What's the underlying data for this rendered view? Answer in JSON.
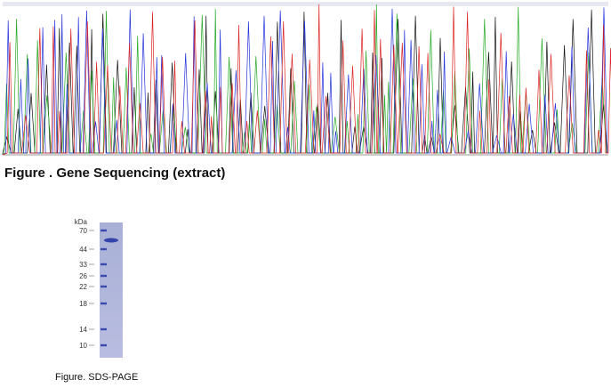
{
  "figures": [
    {
      "caption": "Figure . Gene Sequencing (extract)"
    },
    {
      "caption": "Figure. SDS-PAGE",
      "unit": "kDa",
      "ladder": [
        "70",
        "44",
        "33",
        "26",
        "22",
        "18",
        "14",
        "10"
      ]
    }
  ]
}
